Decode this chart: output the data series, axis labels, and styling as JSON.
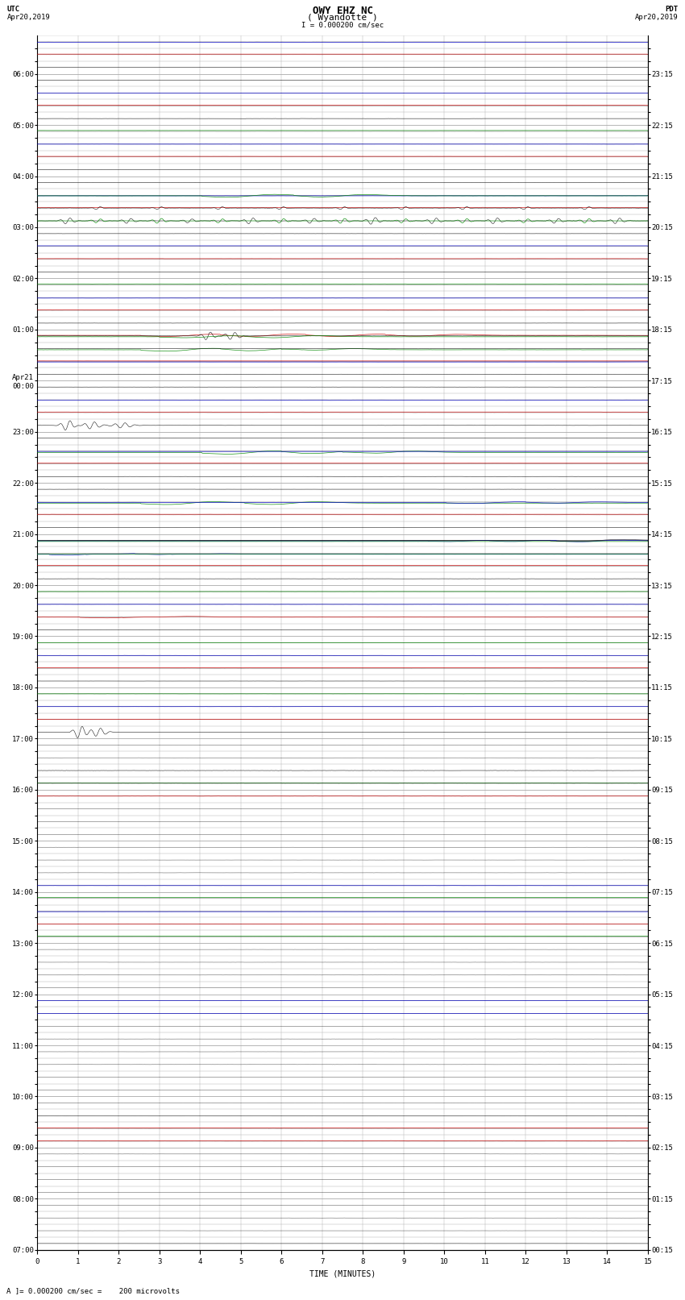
{
  "title_line1": "OWY EHZ NC",
  "title_line2": "( Wyandotte )",
  "title_scale": "I = 0.000200 cm/sec",
  "label_left_top": "UTC",
  "label_left_date": "Apr20,2019",
  "label_right_top": "PDT",
  "label_right_date": "Apr20,2019",
  "xlabel": "TIME (MINUTES)",
  "footnote": "A ]= 0.000200 cm/sec =    200 microvolts",
  "utc_times": [
    "07:00",
    "",
    "",
    "",
    "08:00",
    "",
    "",
    "",
    "09:00",
    "",
    "",
    "",
    "10:00",
    "",
    "",
    "",
    "11:00",
    "",
    "",
    "",
    "12:00",
    "",
    "",
    "",
    "13:00",
    "",
    "",
    "",
    "14:00",
    "",
    "",
    "",
    "15:00",
    "",
    "",
    "",
    "16:00",
    "",
    "",
    "",
    "17:00",
    "",
    "",
    "",
    "18:00",
    "",
    "",
    "",
    "19:00",
    "",
    "",
    "",
    "20:00",
    "",
    "",
    "",
    "21:00",
    "",
    "",
    "",
    "22:00",
    "",
    "",
    "",
    "23:00",
    "",
    "",
    "",
    "Apr21\n00:00",
    "",
    "",
    "",
    "01:00",
    "",
    "",
    "",
    "02:00",
    "",
    "",
    "",
    "03:00",
    "",
    "",
    "",
    "04:00",
    "",
    "",
    "",
    "05:00",
    "",
    "",
    "",
    "06:00",
    "",
    ""
  ],
  "pdt_times": [
    "00:15",
    "",
    "",
    "",
    "01:15",
    "",
    "",
    "",
    "02:15",
    "",
    "",
    "",
    "03:15",
    "",
    "",
    "",
    "04:15",
    "",
    "",
    "",
    "05:15",
    "",
    "",
    "",
    "06:15",
    "",
    "",
    "",
    "07:15",
    "",
    "",
    "",
    "08:15",
    "",
    "",
    "",
    "09:15",
    "",
    "",
    "",
    "10:15",
    "",
    "",
    "",
    "11:15",
    "",
    "",
    "",
    "12:15",
    "",
    "",
    "",
    "13:15",
    "",
    "",
    "",
    "14:15",
    "",
    "",
    "",
    "15:15",
    "",
    "",
    "",
    "16:15",
    "",
    "",
    "",
    "17:15",
    "",
    "",
    "",
    "18:15",
    "",
    "",
    "",
    "19:15",
    "",
    "",
    "",
    "20:15",
    "",
    "",
    "",
    "21:15",
    "",
    "",
    "",
    "22:15",
    "",
    "",
    "",
    "23:15",
    "",
    ""
  ],
  "n_rows": 95,
  "x_min": 0,
  "x_max": 15,
  "bg_color": "#ffffff",
  "grid_color": "#aaaaaa",
  "title_fontsize": 9,
  "label_fontsize": 7,
  "tick_fontsize": 6.5
}
